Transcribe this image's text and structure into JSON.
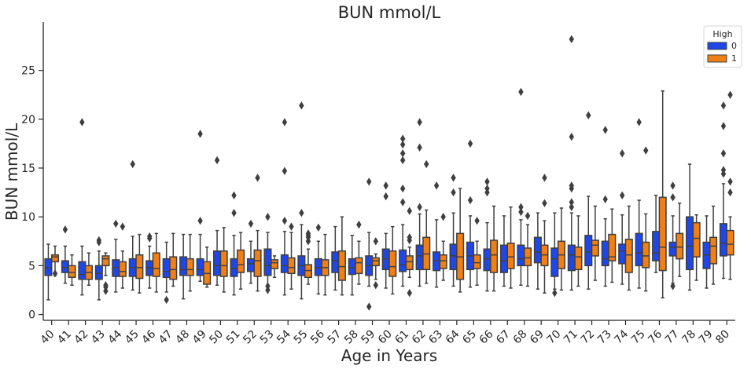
{
  "chart_data": {
    "type": "box",
    "title": "BUN mmol/L",
    "xlabel": "Age in Years",
    "ylabel": "BUN mmol/L",
    "ylim": [
      -0.6,
      29.8
    ],
    "yticks": [
      0,
      5,
      10,
      15,
      20,
      25
    ],
    "grid": false,
    "legend": {
      "title": "High",
      "position": "top-right"
    },
    "series": [
      {
        "name": "0",
        "color": "#1f47e8"
      },
      {
        "name": "1",
        "color": "#f07f16"
      }
    ],
    "categories": [
      "40",
      "41",
      "42",
      "43",
      "44",
      "45",
      "46",
      "47",
      "48",
      "49",
      "50",
      "51",
      "52",
      "53",
      "54",
      "55",
      "56",
      "57",
      "58",
      "59",
      "60",
      "61",
      "62",
      "63",
      "64",
      "65",
      "66",
      "67",
      "68",
      "69",
      "70",
      "71",
      "72",
      "73",
      "74",
      "75",
      "76",
      "77",
      "78",
      "79",
      "80"
    ],
    "boxes": [
      [
        [
          1.5,
          4.0,
          4.8,
          5.7,
          7.2,
          []
        ],
        [
          4.0,
          5.4,
          5.9,
          6.1,
          7.0,
          [
            4.2
          ]
        ]
      ],
      [
        [
          3.2,
          4.3,
          4.8,
          5.5,
          7.0,
          [
            8.7
          ]
        ],
        [
          3.0,
          3.8,
          4.3,
          5.0,
          6.1,
          []
        ]
      ],
      [
        [
          2.0,
          3.6,
          4.1,
          5.4,
          7.0,
          [
            19.7
          ]
        ],
        [
          3.0,
          3.6,
          4.3,
          5.0,
          6.3,
          []
        ]
      ],
      [
        [
          1.5,
          3.6,
          4.2,
          5.0,
          6.5,
          [
            7.4,
            7.6
          ]
        ],
        [
          4.0,
          5.0,
          5.7,
          6.0,
          6.3,
          [
            2.4,
            2.8,
            3.0
          ]
        ]
      ],
      [
        [
          2.3,
          3.9,
          4.8,
          5.6,
          7.7,
          [
            9.3
          ]
        ],
        [
          2.7,
          3.9,
          4.4,
          5.4,
          6.5,
          [
            9.0
          ]
        ]
      ],
      [
        [
          2.5,
          3.9,
          4.8,
          5.7,
          8.0,
          [
            15.4
          ]
        ],
        [
          2.2,
          3.7,
          4.8,
          6.1,
          8.2,
          []
        ]
      ],
      [
        [
          2.7,
          4.0,
          4.8,
          5.5,
          7.0,
          [
            7.8,
            8.0
          ]
        ],
        [
          2.3,
          3.9,
          4.7,
          6.3,
          8.3,
          []
        ]
      ],
      [
        [
          2.3,
          3.8,
          4.4,
          5.7,
          7.4,
          [
            1.5
          ]
        ],
        [
          2.9,
          3.6,
          4.6,
          5.9,
          8.3,
          []
        ]
      ],
      [
        [
          1.6,
          4.0,
          4.6,
          5.9,
          8.2,
          []
        ],
        [
          2.4,
          4.0,
          4.6,
          5.7,
          8.2,
          []
        ]
      ],
      [
        [
          3.4,
          4.0,
          4.6,
          5.7,
          8.2,
          [
            9.6,
            18.5
          ]
        ],
        [
          2.8,
          3.1,
          4.2,
          5.4,
          6.9,
          []
        ]
      ],
      [
        [
          3.0,
          4.0,
          5.0,
          6.5,
          8.6,
          [
            15.8
          ]
        ],
        [
          2.3,
          3.9,
          5.0,
          6.5,
          8.9,
          []
        ]
      ],
      [
        [
          2.0,
          3.9,
          4.7,
          5.7,
          8.1,
          [
            10.4,
            12.2
          ]
        ],
        [
          2.6,
          4.3,
          5.1,
          6.6,
          8.4,
          []
        ]
      ],
      [
        [
          3.2,
          4.4,
          5.2,
          5.7,
          7.5,
          [
            9.3
          ]
        ],
        [
          2.4,
          3.9,
          5.5,
          6.6,
          8.6,
          [
            14.0
          ]
        ]
      ],
      [
        [
          2.5,
          4.0,
          5.0,
          6.7,
          8.4,
          [
            2.5,
            2.9,
            10.0
          ]
        ],
        [
          3.8,
          4.7,
          5.3,
          5.6,
          6.0,
          []
        ]
      ],
      [
        [
          2.0,
          4.3,
          5.0,
          6.1,
          8.5,
          [
            9.6,
            14.7,
            19.7
          ]
        ],
        [
          2.6,
          4.2,
          4.8,
          5.8,
          8.4,
          [
            9.0
          ]
        ]
      ],
      [
        [
          1.6,
          4.0,
          5.0,
          6.0,
          9.2,
          [
            10.4,
            21.4
          ]
        ],
        [
          3.1,
          3.8,
          4.5,
          5.1,
          6.7,
          [
            7.5,
            7.9,
            8.1,
            8.3
          ]
        ]
      ],
      [
        [
          2.1,
          4.0,
          4.8,
          5.7,
          7.5,
          [
            8.9
          ]
        ],
        [
          2.0,
          4.0,
          4.8,
          5.6,
          8.2,
          []
        ]
      ],
      [
        [
          2.5,
          4.3,
          5.5,
          6.4,
          9.0,
          []
        ],
        [
          2.0,
          3.5,
          4.9,
          6.5,
          10.0,
          []
        ]
      ],
      [
        [
          2.0,
          4.1,
          4.8,
          5.7,
          8.1,
          []
        ],
        [
          3.1,
          4.2,
          5.3,
          5.8,
          7.5,
          [
            9.2
          ]
        ]
      ],
      [
        [
          2.9,
          4.0,
          5.0,
          6.0,
          8.4,
          [
            0.8,
            13.6
          ]
        ],
        [
          3.6,
          5.0,
          5.5,
          5.8,
          6.2,
          [
            3.0,
            7.5
          ]
        ]
      ],
      [
        [
          2.7,
          4.6,
          5.7,
          6.7,
          8.3,
          [
            12.1,
            13.2
          ]
        ],
        [
          2.1,
          3.9,
          4.9,
          6.5,
          9.0,
          []
        ]
      ],
      [
        [
          2.9,
          4.4,
          5.1,
          6.6,
          9.2,
          [
            11.5,
            12.9,
            15.8,
            16.5,
            17.4,
            18.0
          ]
        ],
        [
          3.8,
          4.6,
          5.4,
          6.0,
          6.9,
          [
            2.2,
            7.6,
            7.9,
            10.6
          ]
        ]
      ],
      [
        [
          2.9,
          4.6,
          6.0,
          7.1,
          10.3,
          [
            11.0,
            17.1,
            19.7
          ]
        ],
        [
          3.2,
          4.6,
          6.2,
          7.9,
          10.7,
          [
            15.4
          ]
        ]
      ],
      [
        [
          2.8,
          4.5,
          5.5,
          6.4,
          9.7,
          [
            13.2
          ]
        ],
        [
          3.5,
          4.7,
          5.5,
          6.1,
          7.5,
          [
            10.0
          ]
        ]
      ],
      [
        [
          2.9,
          4.6,
          6.0,
          7.2,
          10.4,
          [
            12.5,
            14.0
          ]
        ],
        [
          2.3,
          3.6,
          5.9,
          8.3,
          12.9,
          []
        ]
      ],
      [
        [
          2.8,
          4.6,
          6.0,
          7.4,
          10.1,
          [
            11.7,
            17.5
          ]
        ],
        [
          3.0,
          4.7,
          5.3,
          6.1,
          7.5,
          [
            9.6
          ]
        ]
      ],
      [
        [
          2.4,
          4.5,
          5.7,
          6.7,
          9.4,
          [
            12.5,
            12.9,
            13.6
          ]
        ],
        [
          2.4,
          4.3,
          6.1,
          7.6,
          11.1,
          []
        ]
      ],
      [
        [
          2.9,
          4.3,
          5.5,
          7.1,
          10.1,
          []
        ],
        [
          2.7,
          4.7,
          5.9,
          7.3,
          11.0,
          []
        ]
      ],
      [
        [
          3.0,
          5.0,
          5.7,
          7.1,
          9.7,
          [
            10.5,
            11.0,
            22.8
          ]
        ],
        [
          2.9,
          5.0,
          5.8,
          6.8,
          9.2,
          [
            10.1
          ]
        ]
      ],
      [
        [
          2.6,
          5.3,
          6.4,
          7.9,
          10.4,
          []
        ],
        [
          2.2,
          5.0,
          6.1,
          7.1,
          9.6,
          [
            11.4,
            14.0
          ]
        ]
      ],
      [
        [
          2.6,
          3.9,
          5.7,
          6.8,
          10.4,
          [
            2.2
          ]
        ],
        [
          2.5,
          4.7,
          6.1,
          7.5,
          10.9,
          []
        ]
      ],
      [
        [
          2.5,
          4.5,
          6.1,
          7.1,
          10.4,
          [
            11.0,
            11.5,
            12.9,
            13.2,
            18.2,
            28.2
          ]
        ],
        [
          2.9,
          4.6,
          5.9,
          6.9,
          10.1,
          []
        ]
      ],
      [
        [
          2.6,
          5.0,
          6.4,
          8.1,
          12.1,
          [
            20.4
          ]
        ],
        [
          3.5,
          6.0,
          7.1,
          7.6,
          11.1,
          []
        ]
      ],
      [
        [
          2.9,
          5.0,
          5.7,
          7.5,
          9.8,
          [
            11.8,
            18.9
          ]
        ],
        [
          3.3,
          5.5,
          5.9,
          8.2,
          10.8,
          []
        ]
      ],
      [
        [
          3.1,
          5.2,
          6.5,
          7.2,
          10.2,
          [
            12.2,
            16.5
          ]
        ],
        [
          2.5,
          4.3,
          6.1,
          7.7,
          11.1,
          []
        ]
      ],
      [
        [
          2.7,
          5.0,
          6.3,
          8.3,
          11.7,
          [
            19.7
          ]
        ],
        [
          2.4,
          4.8,
          6.0,
          7.4,
          10.3,
          [
            16.8
          ]
        ]
      ],
      [
        [
          4.3,
          5.5,
          6.3,
          8.5,
          12.2,
          []
        ],
        [
          1.7,
          4.5,
          6.9,
          12.0,
          22.9,
          []
        ]
      ],
      [
        [
          3.2,
          6.0,
          6.9,
          7.4,
          10.1,
          [
            2.9,
            12.0,
            13.2
          ]
        ],
        [
          3.9,
          5.7,
          6.9,
          8.3,
          11.4,
          []
        ]
      ],
      [
        [
          2.5,
          4.6,
          7.0,
          10.0,
          15.4,
          []
        ],
        [
          3.5,
          5.9,
          7.8,
          9.4,
          10.2,
          []
        ]
      ],
      [
        [
          2.7,
          4.7,
          6.1,
          7.4,
          10.1,
          []
        ],
        [
          3.1,
          5.2,
          7.0,
          7.9,
          11.1,
          []
        ]
      ],
      [
        [
          3.7,
          6.0,
          7.3,
          9.3,
          13.4,
          [
            14.4,
            14.8,
            16.5,
            19.3,
            21.4
          ]
        ],
        [
          3.6,
          6.1,
          7.2,
          8.6,
          10.0,
          [
            12.5,
            13.6,
            22.5
          ]
        ]
      ]
    ]
  }
}
